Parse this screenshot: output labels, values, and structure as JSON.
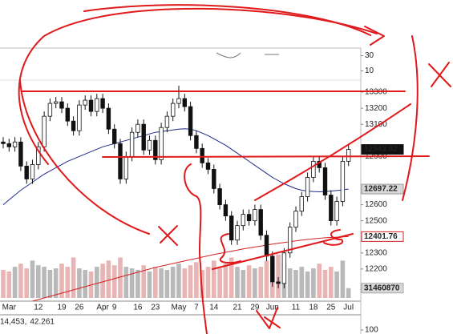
{
  "chart_data": {
    "type": "candlestick",
    "categories": [
      null,
      "Mar",
      null,
      null,
      null,
      null,
      "12",
      null,
      null,
      null,
      "19",
      null,
      null,
      "26",
      null,
      null,
      null,
      "Apr",
      null,
      "9",
      null,
      null,
      null,
      "16",
      null,
      null,
      "23",
      null,
      null,
      null,
      "May",
      null,
      null,
      "7",
      null,
      null,
      "14",
      null,
      null,
      null,
      "21",
      null,
      null,
      "29",
      null,
      null,
      "Jun",
      null,
      null,
      null,
      "11",
      null,
      null,
      "18",
      null,
      null,
      "25",
      null,
      null,
      "Jul"
    ],
    "open": [
      12990,
      12980,
      12960,
      12990,
      12840,
      12760,
      12850,
      12960,
      13150,
      13230,
      13240,
      13200,
      13120,
      13060,
      13220,
      13250,
      13180,
      13260,
      13200,
      13070,
      12980,
      12760,
      12900,
      13050,
      13100,
      12940,
      13000,
      12880,
      13080,
      13150,
      13230,
      13260,
      13210,
      13030,
      12950,
      12860,
      12820,
      12700,
      12600,
      12530,
      12380,
      12470,
      12540,
      12500,
      12570,
      12410,
      12280,
      12120,
      12110,
      12300,
      12460,
      12560,
      12650,
      12770,
      12870,
      12830,
      12660,
      12500,
      12620,
      12870
    ],
    "high": [
      13020,
      13010,
      13020,
      13020,
      12870,
      12880,
      12990,
      13180,
      13260,
      13270,
      13270,
      13230,
      13150,
      13250,
      13280,
      13280,
      13290,
      13290,
      13230,
      13100,
      13010,
      12930,
      13080,
      13130,
      13130,
      13030,
      13030,
      13110,
      13180,
      13260,
      13340,
      13290,
      13240,
      13060,
      12980,
      12890,
      12850,
      12730,
      12630,
      12560,
      12500,
      12570,
      12570,
      12600,
      12600,
      12440,
      12310,
      12150,
      12330,
      12490,
      12590,
      12680,
      12800,
      12900,
      12900,
      12860,
      12690,
      12650,
      12900,
      12980
    ],
    "low": [
      12950,
      12930,
      12930,
      12810,
      12730,
      12730,
      12820,
      12930,
      13120,
      13200,
      13170,
      13090,
      13030,
      13030,
      13190,
      13150,
      13150,
      13170,
      13040,
      12950,
      12730,
      12730,
      12870,
      13020,
      12910,
      12910,
      12850,
      12850,
      13050,
      13120,
      13200,
      13180,
      13000,
      12920,
      12830,
      12790,
      12670,
      12570,
      12500,
      12350,
      12350,
      12440,
      12470,
      12470,
      12380,
      12250,
      12090,
      12080,
      12080,
      12270,
      12430,
      12530,
      12620,
      12740,
      12800,
      12630,
      12470,
      12470,
      12590,
      12840
    ],
    "close": [
      12980,
      12960,
      12990,
      12840,
      12760,
      12850,
      12960,
      13150,
      13230,
      13240,
      13200,
      13120,
      13060,
      13220,
      13250,
      13180,
      13260,
      13200,
      13070,
      12980,
      12760,
      12900,
      13050,
      13100,
      12940,
      13000,
      12880,
      13080,
      13150,
      13230,
      13260,
      13210,
      13030,
      12950,
      12860,
      12820,
      12700,
      12600,
      12530,
      12380,
      12470,
      12540,
      12500,
      12570,
      12410,
      12280,
      12120,
      12110,
      12300,
      12460,
      12560,
      12650,
      12770,
      12870,
      12830,
      12660,
      12500,
      12620,
      12870,
      12943.82
    ],
    "ylim": [
      12000,
      13375
    ],
    "yticks": [
      13300,
      13200,
      13100,
      12900,
      12600,
      12500,
      12300,
      12200
    ],
    "up_color": "#ffffff",
    "down_color": "#111111",
    "ma50": {
      "color": "#1f2a8a",
      "values": [
        12600,
        12630,
        12660,
        12690,
        12715,
        12740,
        12765,
        12790,
        12810,
        12830,
        12850,
        12870,
        12885,
        12900,
        12915,
        12930,
        12945,
        12960,
        12970,
        12980,
        12990,
        13000,
        13010,
        13020,
        13030,
        13040,
        13050,
        13055,
        13060,
        13065,
        13070,
        13072,
        13070,
        13060,
        13045,
        13030,
        13010,
        12990,
        12970,
        12945,
        12920,
        12895,
        12870,
        12845,
        12820,
        12795,
        12770,
        12750,
        12730,
        12715,
        12700,
        12690,
        12685,
        12682,
        12680,
        12682,
        12685,
        12688,
        12692,
        12697.22
      ]
    },
    "ma200": {
      "color": "#d42020",
      "values": [
        11950,
        11960,
        11970,
        11980,
        11990,
        12000,
        12010,
        12020,
        12030,
        12040,
        12050,
        12060,
        12070,
        12080,
        12090,
        12100,
        12110,
        12120,
        12130,
        12140,
        12150,
        12160,
        12170,
        12180,
        12190,
        12200,
        12210,
        12218,
        12226,
        12234,
        12242,
        12250,
        12258,
        12266,
        12274,
        12282,
        12290,
        12297,
        12304,
        12311,
        12318,
        12325,
        12331,
        12337,
        12343,
        12349,
        12355,
        12360,
        12365,
        12370,
        12375,
        12380,
        12384,
        12388,
        12391,
        12394,
        12396,
        12398,
        12400,
        12401.76
      ]
    },
    "volume": {
      "up_color": "#b9b9b9",
      "down_color": "#e8b4b4",
      "ylim": [
        0,
        180000000
      ],
      "values": [
        90000000,
        85000000,
        100000000,
        110000000,
        95000000,
        120000000,
        105000000,
        100000000,
        90000000,
        95000000,
        110000000,
        100000000,
        130000000,
        95000000,
        90000000,
        85000000,
        100000000,
        110000000,
        120000000,
        105000000,
        130000000,
        100000000,
        95000000,
        90000000,
        105000000,
        85000000,
        100000000,
        95000000,
        90000000,
        100000000,
        110000000,
        95000000,
        105000000,
        115000000,
        90000000,
        100000000,
        120000000,
        95000000,
        110000000,
        130000000,
        100000000,
        90000000,
        105000000,
        95000000,
        100000000,
        120000000,
        125000000,
        140000000,
        110000000,
        95000000,
        90000000,
        100000000,
        85000000,
        95000000,
        110000000,
        90000000,
        100000000,
        85000000,
        120000000,
        31460870
      ]
    },
    "indicator": {
      "ylim": [
        0,
        40
      ],
      "yticks": [
        30,
        10
      ]
    },
    "footer": {
      "values": [
        {
          "text": "14,453,",
          "color": "#c02020"
        },
        {
          "text": "42.261",
          "color": "#2030a0"
        }
      ],
      "yticks": [
        100
      ]
    }
  }
}
